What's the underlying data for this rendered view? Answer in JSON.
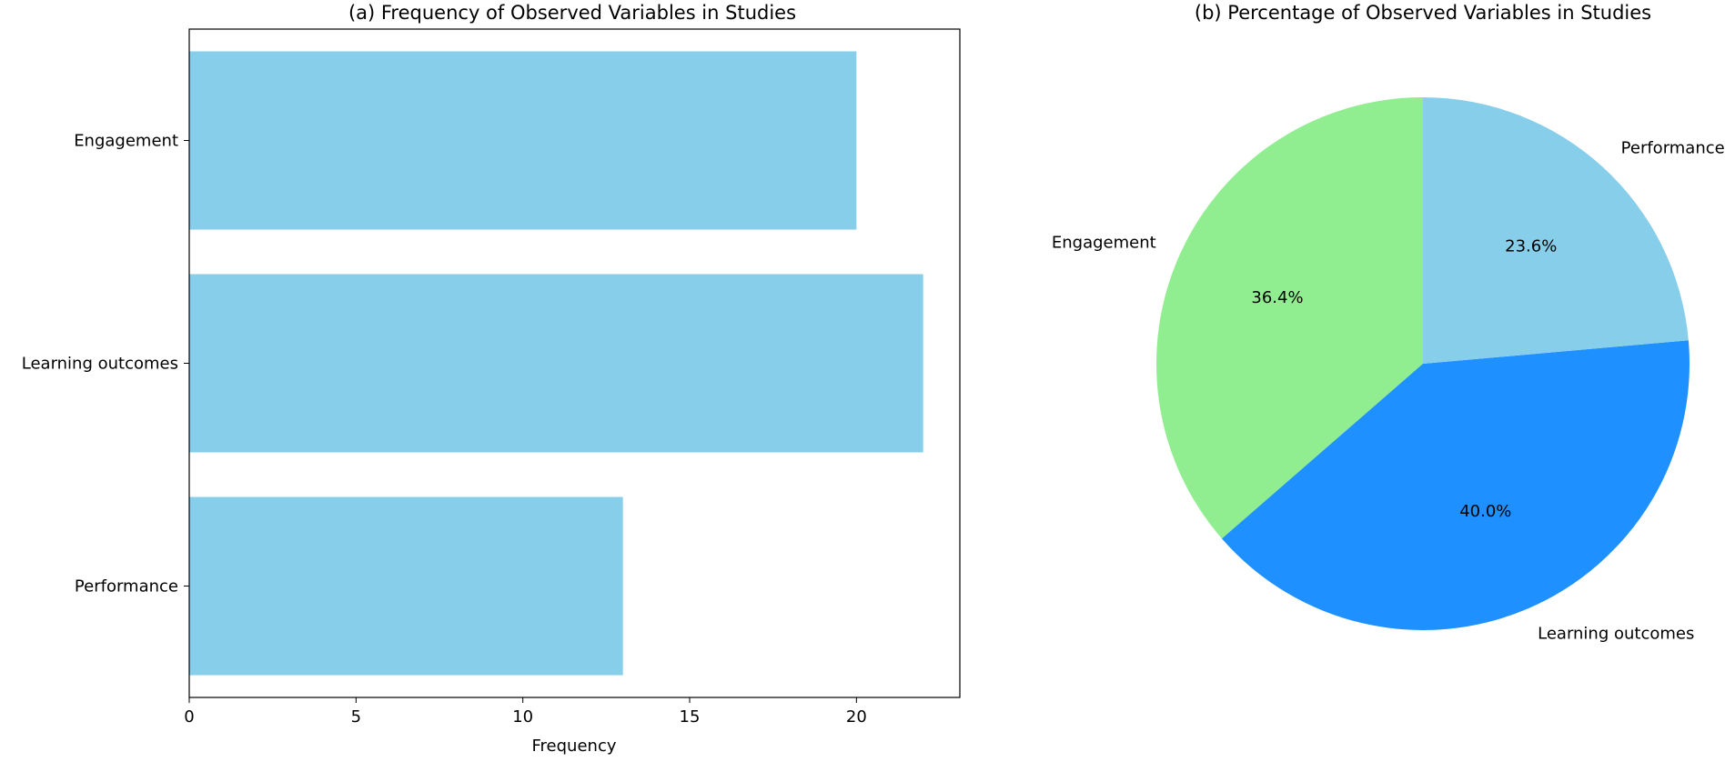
{
  "chart_data": [
    {
      "type": "bar",
      "orientation": "horizontal",
      "title": "(a) Frequency of Observed Variables in Studies",
      "xlabel": "Frequency",
      "ylabel": "",
      "categories": [
        "Engagement",
        "Learning outcomes",
        "Performance"
      ],
      "values": [
        20,
        22,
        13
      ],
      "xlim": [
        0,
        23.1
      ],
      "xticks": [
        0,
        5,
        10,
        15,
        20
      ],
      "grid": false,
      "bar_color": "#87CEEB"
    },
    {
      "type": "pie",
      "title": "(b) Percentage of Observed Variables in Studies",
      "labels": [
        "Engagement",
        "Learning outcomes",
        "Performance"
      ],
      "values": [
        36.4,
        40.0,
        23.6
      ],
      "pct_labels": [
        "36.4%",
        "40.0%",
        "23.6%"
      ],
      "colors": [
        "#90EE90",
        "#1E90FF",
        "#87CEEB"
      ]
    }
  ]
}
